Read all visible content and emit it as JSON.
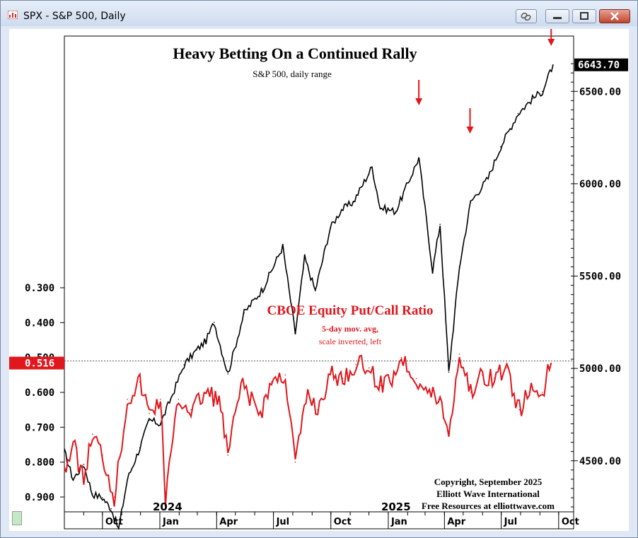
{
  "window": {
    "title": "SPX - S&P 500, Daily",
    "buttons": [
      "link-icon",
      "minimize-icon",
      "maximize-icon",
      "close-icon"
    ]
  },
  "chart_data": {
    "type": "line",
    "title": "Heavy Betting On a Continued Rally",
    "subtitle": "S&P 500, daily range",
    "x_tick_labels": [
      "Oct",
      "Jan",
      "Apr",
      "Jul",
      "Oct",
      "Jan",
      "Apr",
      "Jul",
      "Oct"
    ],
    "year_labels": [
      "2024",
      "2025"
    ],
    "right_axis": {
      "ticks": [
        "4500.00",
        "5000.00",
        "5500.00",
        "6000.00",
        "6500.00"
      ],
      "ylim": [
        4200,
        6700
      ],
      "last_value": "6643.70"
    },
    "left_axis": {
      "ticks": [
        "0.300",
        "0.400",
        "0.500",
        "0.600",
        "0.700",
        "0.800",
        "0.900"
      ],
      "inverted": true,
      "last_value": "0.516"
    },
    "series": [
      {
        "name": "S&P 500",
        "color": "#000000",
        "axis": "right",
        "x": [
          "2023-08-01",
          "2023-08-15",
          "2023-09-01",
          "2023-09-15",
          "2023-10-01",
          "2023-10-15",
          "2023-10-27",
          "2023-11-10",
          "2023-11-30",
          "2023-12-15",
          "2024-01-02",
          "2024-01-19",
          "2024-02-09",
          "2024-02-29",
          "2024-03-15",
          "2024-03-28",
          "2024-04-19",
          "2024-05-15",
          "2024-06-14",
          "2024-07-16",
          "2024-08-05",
          "2024-08-20",
          "2024-09-06",
          "2024-09-30",
          "2024-10-18",
          "2024-11-06",
          "2024-12-06",
          "2024-12-19",
          "2025-01-13",
          "2025-02-19",
          "2025-03-13",
          "2025-03-25",
          "2025-04-08",
          "2025-04-25",
          "2025-05-13",
          "2025-06-10",
          "2025-06-30",
          "2025-07-28",
          "2025-08-20",
          "2025-09-05",
          "2025-09-22"
        ],
        "values": [
          4550,
          4400,
          4480,
          4320,
          4300,
          4240,
          4130,
          4400,
          4570,
          4720,
          4700,
          4840,
          5020,
          5100,
          5150,
          5250,
          4970,
          5300,
          5430,
          5660,
          5190,
          5600,
          5420,
          5760,
          5860,
          5900,
          6090,
          5870,
          5850,
          6140,
          5530,
          5780,
          4980,
          5550,
          5900,
          6030,
          6200,
          6380,
          6460,
          6500,
          6643.7
        ]
      },
      {
        "name": "CBOE Equity Put/Call Ratio",
        "color": "#e0171c",
        "axis": "left",
        "note1": "5-day mov. avg,",
        "note2": "scale inverted, left",
        "x": [
          "2023-08-01",
          "2023-08-15",
          "2023-09-01",
          "2023-09-15",
          "2023-10-01",
          "2023-10-20",
          "2023-11-10",
          "2023-11-30",
          "2023-12-15",
          "2024-01-02",
          "2024-01-10",
          "2024-01-31",
          "2024-02-20",
          "2024-03-15",
          "2024-04-05",
          "2024-04-19",
          "2024-05-10",
          "2024-06-10",
          "2024-06-28",
          "2024-07-20",
          "2024-08-05",
          "2024-08-25",
          "2024-09-10",
          "2024-09-30",
          "2024-10-20",
          "2024-11-10",
          "2024-12-01",
          "2024-12-20",
          "2025-01-10",
          "2025-01-22",
          "2025-02-15",
          "2025-03-05",
          "2025-03-25",
          "2025-04-08",
          "2025-04-25",
          "2025-05-13",
          "2025-06-01",
          "2025-06-20",
          "2025-07-10",
          "2025-07-30",
          "2025-08-15",
          "2025-09-05",
          "2025-09-19"
        ],
        "values": [
          0.82,
          0.75,
          0.85,
          0.72,
          0.78,
          0.9,
          0.62,
          0.57,
          0.66,
          0.62,
          0.9,
          0.62,
          0.65,
          0.6,
          0.62,
          0.78,
          0.58,
          0.66,
          0.57,
          0.55,
          0.8,
          0.6,
          0.65,
          0.55,
          0.56,
          0.52,
          0.53,
          0.58,
          0.55,
          0.5,
          0.56,
          0.6,
          0.62,
          0.72,
          0.49,
          0.6,
          0.55,
          0.56,
          0.53,
          0.65,
          0.6,
          0.6,
          0.516
        ]
      }
    ],
    "reference_line": 0.51,
    "arrows": [
      "2025-02-19",
      "2025-05-12",
      "2025-09-19"
    ],
    "copyright": [
      "Copyright, September 2025",
      "Elliott Wave International",
      "Free Resources at elliottwave.com"
    ]
  }
}
